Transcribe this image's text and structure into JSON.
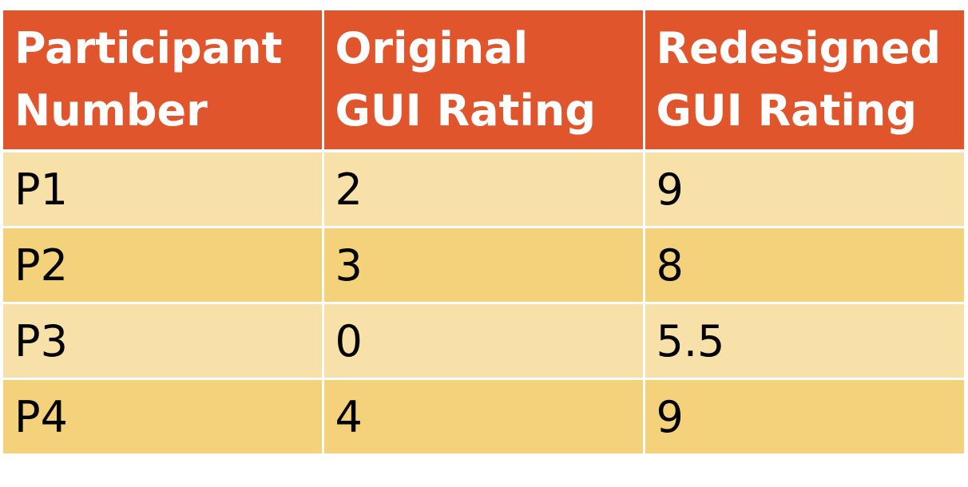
{
  "table": {
    "headers": [
      [
        "Participant",
        "Number"
      ],
      [
        "Original",
        "GUI Rating"
      ],
      [
        "Redesigned",
        "GUI Rating"
      ]
    ],
    "rows": [
      [
        "P1",
        "2",
        "9"
      ],
      [
        "P2",
        "3",
        "8"
      ],
      [
        "P3",
        "0",
        "5.5"
      ],
      [
        "P4",
        "4",
        "9"
      ]
    ]
  },
  "colors": {
    "header_bg": "#e0552b",
    "row_light": "#f8e1a9",
    "row_dark": "#f4d17b"
  }
}
